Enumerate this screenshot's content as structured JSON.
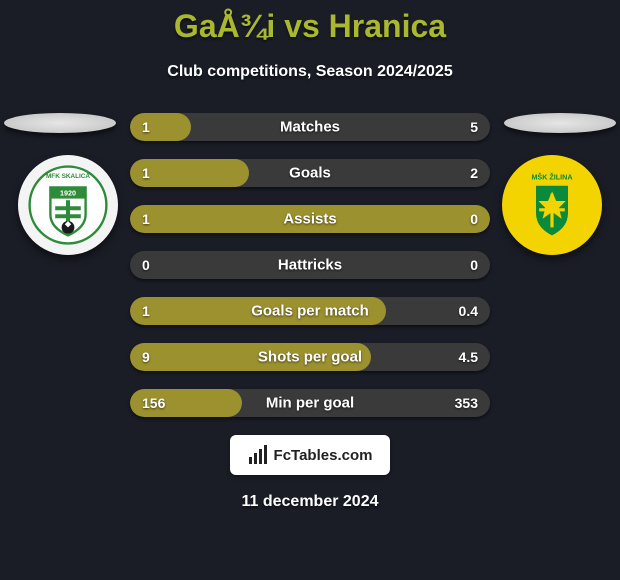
{
  "background_color": "#1a1d26",
  "title": {
    "text": "GaÅ¾i vs Hranica",
    "color": "#a9b82f",
    "fontsize": 32
  },
  "subtitle": {
    "text": "Club competitions, Season 2024/2025",
    "color": "#ffffff",
    "fontsize": 16
  },
  "team_left": {
    "badge_bg": "#f4f4f4",
    "badge_text_top": "MFK SKALICA",
    "badge_year": "1920",
    "badge_accent": "#2e8b3a"
  },
  "team_right": {
    "badge_bg": "#f4d400",
    "badge_text": "MŠK ŽILINA",
    "badge_accent": "#0a8a3a"
  },
  "bars": {
    "bar_bg": "#3a3a3a",
    "bar_fill": "#9c912f",
    "fontsize": 15,
    "rows": [
      {
        "label": "Matches",
        "left": "1",
        "right": "5",
        "fill_pct": 17
      },
      {
        "label": "Goals",
        "left": "1",
        "right": "2",
        "fill_pct": 33
      },
      {
        "label": "Assists",
        "left": "1",
        "right": "0",
        "fill_pct": 100
      },
      {
        "label": "Hattricks",
        "left": "0",
        "right": "0",
        "fill_pct": 0
      },
      {
        "label": "Goals per match",
        "left": "1",
        "right": "0.4",
        "fill_pct": 71
      },
      {
        "label": "Shots per goal",
        "left": "9",
        "right": "4.5",
        "fill_pct": 67
      },
      {
        "label": "Min per goal",
        "left": "156",
        "right": "353",
        "fill_pct": 31
      }
    ]
  },
  "watermark": {
    "text": "FcTables.com"
  },
  "footer_date": "11 december 2024"
}
